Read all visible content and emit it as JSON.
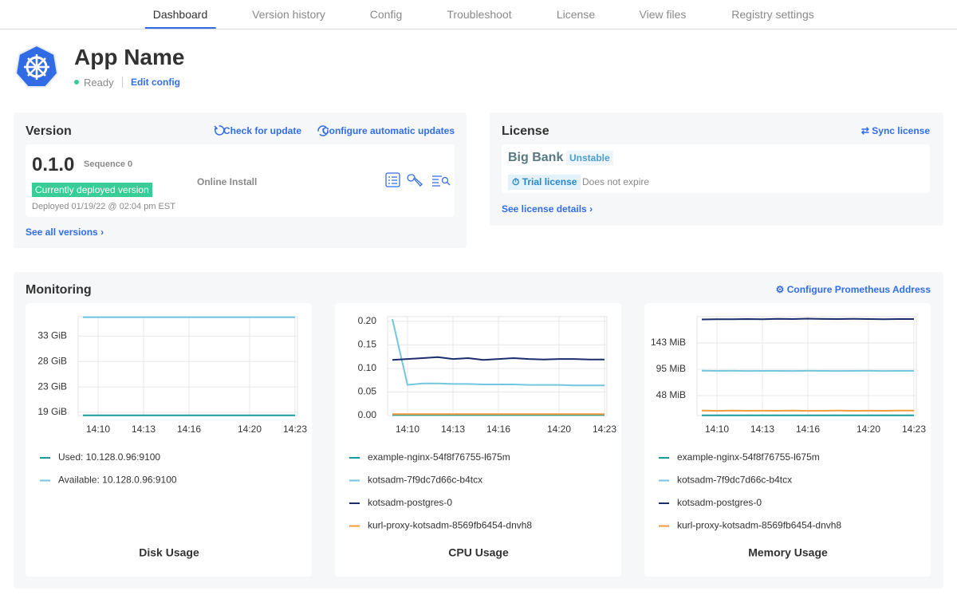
{
  "nav": {
    "tabs": [
      "Dashboard",
      "Version history",
      "Config",
      "Troubleshoot",
      "License",
      "View files",
      "Registry settings"
    ],
    "active": 0
  },
  "app": {
    "name": "App Name",
    "status": "Ready",
    "edit": "Edit config"
  },
  "version": {
    "title": "Version",
    "check": "Check for update",
    "configure": "Configure automatic updates",
    "number": "0.1.0",
    "sequence": "Sequence 0",
    "badge": "Currently deployed version",
    "deployed": "Deployed 01/19/22 @ 02:04 pm EST",
    "install": "Online Install",
    "see_all": "See all versions"
  },
  "license": {
    "title": "License",
    "sync": "Sync license",
    "name": "Big Bank",
    "channel": "Unstable",
    "type": "Trial license",
    "expiry": "Does not expire",
    "details": "See license details"
  },
  "monitoring": {
    "title": "Monitoring",
    "configure": "Configure Prometheus Address",
    "charts": [
      {
        "type": "line",
        "title": "Disk Usage",
        "x": [
          "14:09",
          "14:10",
          "14:11",
          "14:12",
          "14:13",
          "14:14",
          "14:15",
          "14:16",
          "14:17",
          "14:18",
          "14:19",
          "14:20",
          "14:21",
          "14:22",
          "14:23"
        ],
        "xticks": [
          "14:10",
          "14:13",
          "14:16",
          "14:20",
          "14:23"
        ],
        "ylim": [
          18,
          36.3
        ],
        "yticks": [
          {
            "value": 18.6,
            "label": "19 GiB"
          },
          {
            "value": 23.3,
            "label": "23 GiB"
          },
          {
            "value": 28.0,
            "label": "28 GiB"
          },
          {
            "value": 32.7,
            "label": "33 GiB"
          }
        ],
        "series": [
          {
            "name": "Used: 10.128.0.96:9100",
            "color": "#1a9a9a",
            "values": [
              18.05,
              18.05,
              18.05,
              18.05,
              18.05,
              18.05,
              18.05,
              18.05,
              18.05,
              18.05,
              18.05,
              18.05,
              18.05,
              18.05,
              18.05
            ]
          },
          {
            "name": "Available: 10.128.0.96:9100",
            "color": "#73c6e0",
            "values": [
              36.2,
              36.2,
              36.2,
              36.2,
              36.2,
              36.2,
              36.2,
              36.2,
              36.2,
              36.2,
              36.2,
              36.2,
              36.2,
              36.2,
              36.2
            ]
          }
        ]
      },
      {
        "type": "line",
        "title": "CPU Usage",
        "x": [
          "14:09",
          "14:10",
          "14:11",
          "14:12",
          "14:13",
          "14:14",
          "14:15",
          "14:16",
          "14:17",
          "14:18",
          "14:19",
          "14:20",
          "14:21",
          "14:22",
          "14:23"
        ],
        "xticks": [
          "14:10",
          "14:13",
          "14:16",
          "14:20",
          "14:23"
        ],
        "ylim": [
          0,
          0.21
        ],
        "yticks": [
          {
            "value": 0,
            "label": "0.00"
          },
          {
            "value": 0.05,
            "label": "0.05"
          },
          {
            "value": 0.1,
            "label": "0.10"
          },
          {
            "value": 0.15,
            "label": "0.15"
          },
          {
            "value": 0.2,
            "label": "0.20"
          }
        ],
        "series": [
          {
            "name": "example-nginx-54f8f76755-l675m",
            "color": "#1a9a9a",
            "values": [
              0.001,
              0.001,
              0.001,
              0.001,
              0.001,
              0.001,
              0.001,
              0.001,
              0.001,
              0.001,
              0.001,
              0.001,
              0.001,
              0.001,
              0.001
            ]
          },
          {
            "name": "kotsadm-7f9dc7d66c-b4tcx",
            "color": "#73c6e0",
            "values": [
              0.205,
              0.065,
              0.068,
              0.068,
              0.067,
              0.067,
              0.066,
              0.066,
              0.066,
              0.065,
              0.065,
              0.065,
              0.064,
              0.064,
              0.064
            ]
          },
          {
            "name": "kotsadm-postgres-0",
            "color": "#1c2d6b",
            "values": [
              0.118,
              0.12,
              0.122,
              0.124,
              0.12,
              0.122,
              0.118,
              0.12,
              0.122,
              0.12,
              0.119,
              0.12,
              0.12,
              0.119,
              0.119
            ]
          },
          {
            "name": "kurl-proxy-kotsadm-8569fb6454-dnvh8",
            "color": "#f59a3c",
            "values": [
              0.003,
              0.003,
              0.003,
              0.003,
              0.003,
              0.003,
              0.003,
              0.003,
              0.003,
              0.003,
              0.003,
              0.003,
              0.003,
              0.003,
              0.003
            ]
          }
        ]
      },
      {
        "type": "line",
        "title": "Memory Usage",
        "x": [
          "14:09",
          "14:10",
          "14:11",
          "14:12",
          "14:13",
          "14:14",
          "14:15",
          "14:16",
          "14:17",
          "14:18",
          "14:19",
          "14:20",
          "14:21",
          "14:22",
          "14:23"
        ],
        "xticks": [
          "14:10",
          "14:13",
          "14:16",
          "14:20",
          "14:23"
        ],
        "ylim": [
          11.7,
          190.6
        ],
        "yticks": [
          {
            "value": 47.7,
            "label": "48 MiB"
          },
          {
            "value": 95.4,
            "label": "95 MiB"
          },
          {
            "value": 143.1,
            "label": "143 MiB"
          }
        ],
        "series": [
          {
            "name": "example-nginx-54f8f76755-l675m",
            "color": "#1a9a9a",
            "values": [
              12,
              12,
              12,
              12,
              12,
              12,
              12,
              12,
              12,
              12,
              12,
              12,
              12,
              12,
              12
            ]
          },
          {
            "name": "kotsadm-7f9dc7d66c-b4tcx",
            "color": "#73c6e0",
            "values": [
              92.8,
              92.5,
              92.6,
              92.4,
              92.5,
              92.5,
              92.4,
              92.6,
              92.5,
              92.4,
              92.5,
              92.6,
              92.4,
              92.5,
              92.5
            ]
          },
          {
            "name": "kotsadm-postgres-0",
            "color": "#1c2d6b",
            "values": [
              185.6,
              186.0,
              185.8,
              186.3,
              186.0,
              186.5,
              186.2,
              187.0,
              186.4,
              186.2,
              186.6,
              186.3,
              186.0,
              186.2,
              186.2
            ]
          },
          {
            "name": "kurl-proxy-kotsadm-8569fb6454-dnvh8",
            "color": "#f59a3c",
            "values": [
              20.8,
              20.2,
              20.6,
              20.3,
              20.5,
              20.4,
              20.6,
              20.2,
              20.4,
              20.6,
              20.3,
              20.5,
              20.4,
              20.8,
              20.6
            ]
          }
        ]
      }
    ]
  }
}
